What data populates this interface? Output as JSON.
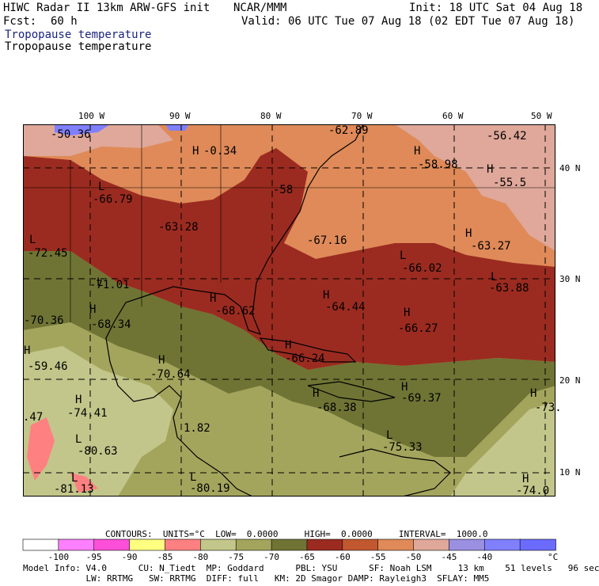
{
  "header": {
    "line1_left": "HIWC Radar II 13km ARW-GFS init",
    "line1_mid": "NCAR/MMM",
    "line1_right": "Init: 18 UTC Sat 04 Aug 18",
    "fcst_label": "Fcst:",
    "fcst_value": "60 h",
    "valid": "Valid: 06 UTC Tue 07 Aug 18 (02 EDT Tue 07 Aug 18)",
    "field_title_1": "Tropopause temperature",
    "field_title_2": "Tropopause temperature"
  },
  "axes": {
    "longitudes": [
      "100 W",
      "90 W",
      "80 W",
      "70 W",
      "60 W",
      "50 W"
    ],
    "latitudes": [
      "40 N",
      "30 N",
      "20 N",
      "10 N"
    ]
  },
  "map_labels": [
    {
      "text": "-50.36"
    },
    {
      "text": "L"
    },
    {
      "text": "-66.79"
    },
    {
      "text": "H"
    },
    {
      "text": "-63.28"
    },
    {
      "text": "L"
    },
    {
      "text": "-72.45"
    },
    {
      "text": "L"
    },
    {
      "text": "-71.01"
    },
    {
      "text": "H"
    },
    {
      "text": "-68.34"
    },
    {
      "text": "-70.36"
    },
    {
      "text": "H"
    },
    {
      "text": "-59.46"
    },
    {
      "text": "H"
    },
    {
      "text": "-70.64"
    },
    {
      "text": "H"
    },
    {
      "text": "-74.41"
    },
    {
      "text": ".47"
    },
    {
      "text": "L"
    },
    {
      "text": "-80.63"
    },
    {
      "text": "L"
    },
    {
      "text": "-81.13"
    },
    {
      "text": "L"
    },
    {
      "text": "-80.19"
    },
    {
      "text": "1.82"
    },
    {
      "text": "H"
    },
    {
      "text": "-68.62"
    },
    {
      "text": "-0.34"
    },
    {
      "text": "-62.89"
    },
    {
      "text": "-58"
    },
    {
      "text": "-67.16"
    },
    {
      "text": "H"
    },
    {
      "text": "-64.44"
    },
    {
      "text": "H"
    },
    {
      "text": "-66.27"
    },
    {
      "text": "H"
    },
    {
      "text": "-66.24"
    },
    {
      "text": "H"
    },
    {
      "text": "-68.38"
    },
    {
      "text": "H"
    },
    {
      "text": "-69.37"
    },
    {
      "text": "L"
    },
    {
      "text": "-75.33"
    },
    {
      "text": "H"
    },
    {
      "text": "-58.98"
    },
    {
      "text": "-56.42"
    },
    {
      "text": "H"
    },
    {
      "text": "-55.5"
    },
    {
      "text": "H"
    },
    {
      "text": "-63.27"
    },
    {
      "text": "L"
    },
    {
      "text": "-66.02"
    },
    {
      "text": "L"
    },
    {
      "text": "-63.88"
    },
    {
      "text": "H"
    },
    {
      "text": "-73."
    },
    {
      "text": "H"
    },
    {
      "text": "-74.0"
    }
  ],
  "footer": {
    "contours": "CONTOURS:  UNITS=°C  LOW=  0.0000     HIGH=  0.0000     INTERVAL=  1000.0",
    "colorbar_colors": [
      "#ffffff",
      "#ff80ff",
      "#ff4fd8",
      "#ffff80",
      "#ff8080",
      "#c2c68a",
      "#a3a55d",
      "#6f7434",
      "#9b2b20",
      "#c1582f",
      "#df8a58",
      "#dfa89a",
      "#9a8fe0",
      "#8080ff",
      "#6b6bff"
    ],
    "colorbar_ticks": [
      "-100",
      "-95",
      "-90",
      "-85",
      "-80",
      "-75",
      "-70",
      "-65",
      "-60",
      "-55",
      "-50",
      "-45",
      "-40"
    ],
    "colorbar_unit": "°C",
    "model_line1": "Model Info: V4.0      CU: N_Tiedt  MP: Goddard      PBL: YSU      SF: Noah LSM     13 km    51 levels   96 sec",
    "model_line2": "            LW: RRTMG   SW: RRTMG  DIFF: full   KM: 2D Smagor DAMP: Rayleigh3  SFLAY: MM5"
  }
}
